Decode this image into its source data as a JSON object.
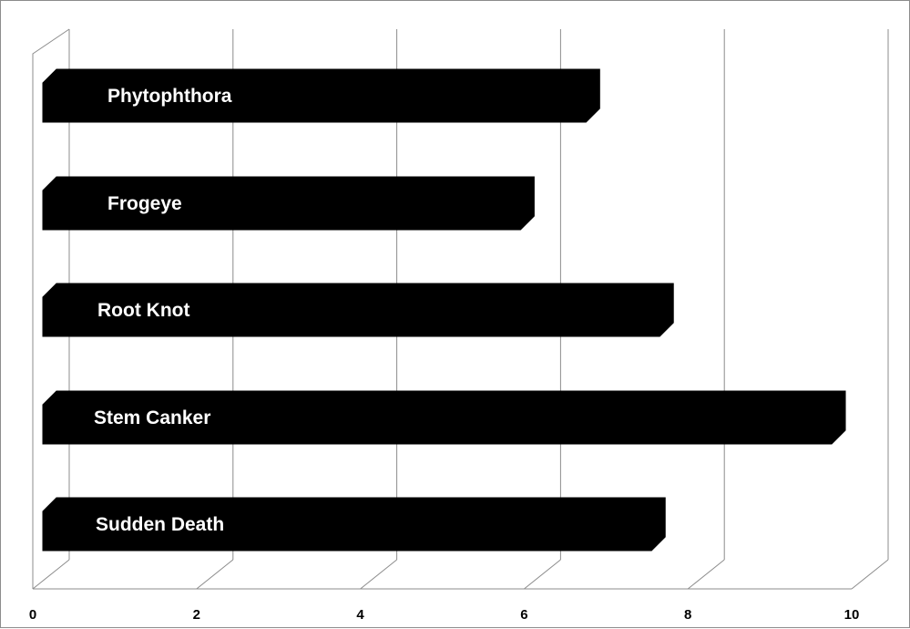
{
  "chart_data": {
    "type": "bar",
    "orientation": "horizontal",
    "style": "3d",
    "categories": [
      "Phytophthora",
      "Frogeye",
      "Root Knot",
      "Stem Canker",
      "Sudden Death"
    ],
    "values": [
      6.8,
      6.0,
      7.7,
      9.8,
      7.6
    ],
    "xlim": [
      0,
      10
    ],
    "xticks": [
      "0",
      "2",
      "4",
      "6",
      "8",
      "10"
    ],
    "grid": true,
    "legend": "none",
    "title": "",
    "xlabel": "",
    "ylabel": "",
    "colors": {
      "bar": "#000000",
      "bar_label": "#ffffff",
      "grid": "#8c8c8c",
      "tick_label": "#000000"
    }
  }
}
